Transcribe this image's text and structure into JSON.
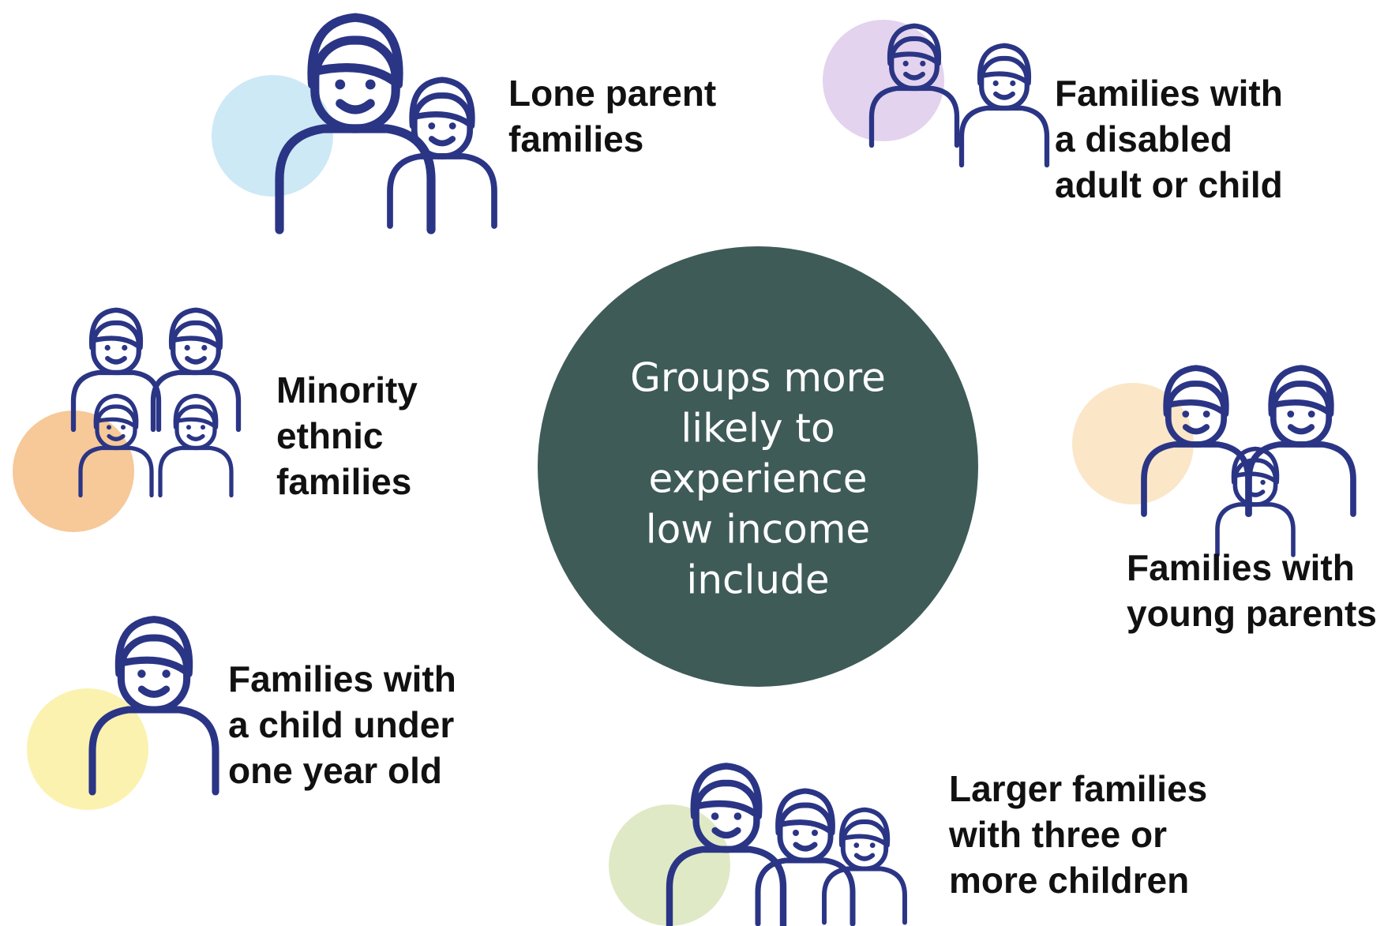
{
  "center": {
    "lines": [
      "Groups more",
      "likely to",
      "experience",
      "low income",
      "include"
    ]
  },
  "groups": [
    {
      "lines": [
        "Lone parent",
        "families"
      ]
    },
    {
      "lines": [
        "Families with",
        "a disabled",
        "adult or child"
      ]
    },
    {
      "lines": [
        "Minority",
        "ethnic",
        "families"
      ]
    },
    {
      "lines": [
        "Families with",
        "young parents"
      ]
    },
    {
      "lines": [
        "Families with",
        "a child under",
        "one year old"
      ]
    },
    {
      "lines": [
        "Larger families",
        "with three or",
        "more children"
      ]
    }
  ]
}
